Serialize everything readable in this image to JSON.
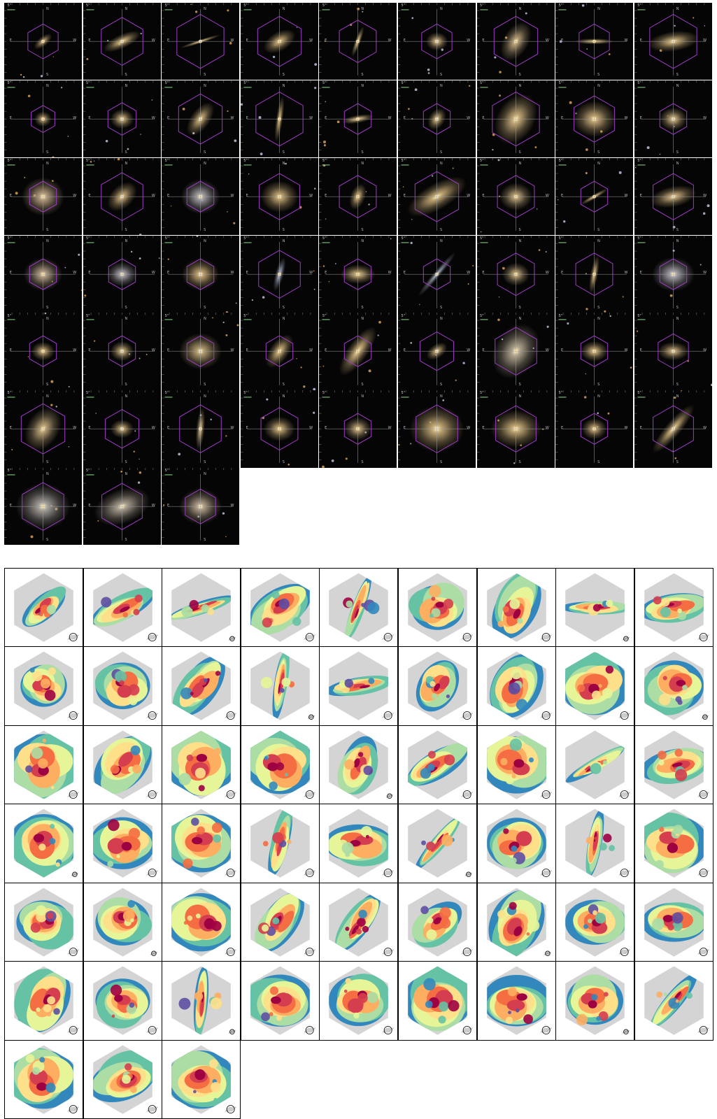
{
  "photo_panel": {
    "rows": 7,
    "cols": 9,
    "tile_count": 57,
    "background_color": "#050505",
    "hexagon_color": "#a03cc8",
    "crosshair_color": "#9aa0a6",
    "scale_bar_color": "#8ee08e",
    "compass_labels": {
      "north": "N",
      "east": "E",
      "west": "W",
      "south": "S"
    },
    "scale_label": "5\"",
    "galaxies": [
      {
        "pa": 40,
        "ratio": 0.45,
        "size": 0.28,
        "color": "#b9a070",
        "hex": 0.45
      },
      {
        "pa": 25,
        "ratio": 0.35,
        "size": 0.52,
        "color": "#c8ae78",
        "hex": 0.62
      },
      {
        "pa": 18,
        "ratio": 0.08,
        "size": 0.55,
        "color": "#c9b07a",
        "hex": 0.7
      },
      {
        "pa": 30,
        "ratio": 0.55,
        "size": 0.45,
        "color": "#c2a672",
        "hex": 0.65
      },
      {
        "pa": 70,
        "ratio": 0.18,
        "size": 0.42,
        "color": "#c9b07a",
        "hex": 0.55
      },
      {
        "pa": 0,
        "ratio": 0.85,
        "size": 0.28,
        "color": "#c8ad78",
        "hex": 0.45
      },
      {
        "pa": 60,
        "ratio": 0.6,
        "size": 0.55,
        "color": "#b8a27a",
        "hex": 0.65
      },
      {
        "pa": 0,
        "ratio": 0.15,
        "size": 0.5,
        "color": "#cdb27a",
        "hex": 0.45
      },
      {
        "pa": 8,
        "ratio": 0.4,
        "size": 0.65,
        "color": "#c6ab76",
        "hex": 0.7
      },
      {
        "pa": 0,
        "ratio": 0.9,
        "size": 0.22,
        "color": "#b9a274",
        "hex": 0.35
      },
      {
        "pa": 0,
        "ratio": 0.85,
        "size": 0.3,
        "color": "#c8ad78",
        "hex": 0.42
      },
      {
        "pa": 55,
        "ratio": 0.5,
        "size": 0.5,
        "color": "#c2a672",
        "hex": 0.65
      },
      {
        "pa": 82,
        "ratio": 0.15,
        "size": 0.6,
        "color": "#c6ab76",
        "hex": 0.7
      },
      {
        "pa": 10,
        "ratio": 0.25,
        "size": 0.42,
        "color": "#cdb27a",
        "hex": 0.4
      },
      {
        "pa": 60,
        "ratio": 0.7,
        "size": 0.3,
        "color": "#c8ad78",
        "hex": 0.4
      },
      {
        "pa": 60,
        "ratio": 0.7,
        "size": 0.7,
        "color": "#c7ad7a",
        "hex": 0.7
      },
      {
        "pa": 0,
        "ratio": 0.85,
        "size": 0.55,
        "color": "#c4a876",
        "hex": 0.6
      },
      {
        "pa": 0,
        "ratio": 0.85,
        "size": 0.35,
        "color": "#c8ad78",
        "hex": 0.4
      },
      {
        "pa": 0,
        "ratio": 0.9,
        "size": 0.55,
        "color": "#b8a080",
        "hex": 0.4
      },
      {
        "pa": 45,
        "ratio": 0.65,
        "size": 0.45,
        "color": "#c2a672",
        "hex": 0.62
      },
      {
        "pa": 0,
        "ratio": 0.9,
        "size": 0.5,
        "color": "#a8a4a8",
        "hex": 0.4
      },
      {
        "pa": 0,
        "ratio": 0.85,
        "size": 0.48,
        "color": "#c2a672",
        "hex": 0.6
      },
      {
        "pa": 70,
        "ratio": 0.55,
        "size": 0.35,
        "color": "#c8ad78",
        "hex": 0.55
      },
      {
        "pa": 30,
        "ratio": 0.4,
        "size": 0.85,
        "color": "#c6ab76",
        "hex": 0.65
      },
      {
        "pa": 0,
        "ratio": 0.85,
        "size": 0.42,
        "color": "#bba477",
        "hex": 0.55
      },
      {
        "pa": 30,
        "ratio": 0.15,
        "size": 0.42,
        "color": "#c8ad78",
        "hex": 0.4
      },
      {
        "pa": 12,
        "ratio": 0.45,
        "size": 0.6,
        "color": "#c4a876",
        "hex": 0.6
      },
      {
        "pa": 0,
        "ratio": 0.85,
        "size": 0.5,
        "color": "#b3a088",
        "hex": 0.4
      },
      {
        "pa": 0,
        "ratio": 0.8,
        "size": 0.4,
        "color": "#a9a6ac",
        "hex": 0.4
      },
      {
        "pa": 0,
        "ratio": 0.85,
        "size": 0.48,
        "color": "#c2a672",
        "hex": 0.4
      },
      {
        "pa": 75,
        "ratio": 0.25,
        "size": 0.45,
        "color": "#9ea4b8",
        "hex": 0.62
      },
      {
        "pa": 0,
        "ratio": 0.55,
        "size": 0.45,
        "color": "#c8ad78",
        "hex": 0.4
      },
      {
        "pa": 50,
        "ratio": 0.12,
        "size": 0.75,
        "color": "#8e96a6",
        "hex": 0.4
      },
      {
        "pa": 0,
        "ratio": 0.85,
        "size": 0.35,
        "color": "#bca57a",
        "hex": 0.55
      },
      {
        "pa": 80,
        "ratio": 0.2,
        "size": 0.5,
        "color": "#c8ad78",
        "hex": 0.55
      },
      {
        "pa": 0,
        "ratio": 0.8,
        "size": 0.55,
        "color": "#a8a4ac",
        "hex": 0.4
      },
      {
        "pa": 0,
        "ratio": 0.8,
        "size": 0.3,
        "color": "#c2a672",
        "hex": 0.4
      },
      {
        "pa": 0,
        "ratio": 0.85,
        "size": 0.3,
        "color": "#c8ad78",
        "hex": 0.4
      },
      {
        "pa": 0,
        "ratio": 0.85,
        "size": 0.55,
        "color": "#b9a274",
        "hex": 0.4
      },
      {
        "pa": 55,
        "ratio": 0.5,
        "size": 0.5,
        "color": "#c6ab76",
        "hex": 0.4
      },
      {
        "pa": 55,
        "ratio": 0.35,
        "size": 0.75,
        "color": "#c8ad78",
        "hex": 0.4
      },
      {
        "pa": 35,
        "ratio": 0.6,
        "size": 0.3,
        "color": "#c2a672",
        "hex": 0.5
      },
      {
        "pa": 60,
        "ratio": 0.75,
        "size": 0.75,
        "color": "#b4a892",
        "hex": 0.62
      },
      {
        "pa": 0,
        "ratio": 0.75,
        "size": 0.35,
        "color": "#c8ad78",
        "hex": 0.4
      },
      {
        "pa": 0,
        "ratio": 0.6,
        "size": 0.4,
        "color": "#c2a672",
        "hex": 0.45
      },
      {
        "pa": 60,
        "ratio": 0.7,
        "size": 0.6,
        "color": "#bea578",
        "hex": 0.65
      },
      {
        "pa": 0,
        "ratio": 0.8,
        "size": 0.3,
        "color": "#c2a672",
        "hex": 0.5
      },
      {
        "pa": 85,
        "ratio": 0.2,
        "size": 0.55,
        "color": "#c8ad78",
        "hex": 0.62
      },
      {
        "pa": 0,
        "ratio": 0.8,
        "size": 0.4,
        "color": "#c2a672",
        "hex": 0.55
      },
      {
        "pa": 0,
        "ratio": 0.85,
        "size": 0.35,
        "color": "#bea578",
        "hex": 0.4
      },
      {
        "pa": 0,
        "ratio": 0.85,
        "size": 0.7,
        "color": "#c8ad78",
        "hex": 0.62
      },
      {
        "pa": 0,
        "ratio": 0.75,
        "size": 0.65,
        "color": "#c6ab76",
        "hex": 0.6
      },
      {
        "pa": 0,
        "ratio": 0.85,
        "size": 0.32,
        "color": "#c2a672",
        "hex": 0.4
      },
      {
        "pa": 50,
        "ratio": 0.25,
        "size": 0.8,
        "color": "#c8ad78",
        "hex": 0.6
      },
      {
        "pa": 0,
        "ratio": 0.85,
        "size": 0.7,
        "color": "#a8a49e",
        "hex": 0.62
      },
      {
        "pa": 20,
        "ratio": 0.6,
        "size": 0.75,
        "color": "#aca292",
        "hex": 0.6
      },
      {
        "pa": 0,
        "ratio": 0.85,
        "size": 0.55,
        "color": "#b6a38c",
        "hex": 0.45
      }
    ]
  },
  "map_panel": {
    "rows": 7,
    "cols": 9,
    "tile_count": 57,
    "mask_color": "#d4d4d4",
    "colormap": [
      "#5e4fa2",
      "#3288bd",
      "#66c2a5",
      "#abdda4",
      "#e6f598",
      "#fee08b",
      "#fdae61",
      "#f46d43",
      "#d53e4f",
      "#9e0142"
    ],
    "beam_symbol": "hatched-circle"
  }
}
